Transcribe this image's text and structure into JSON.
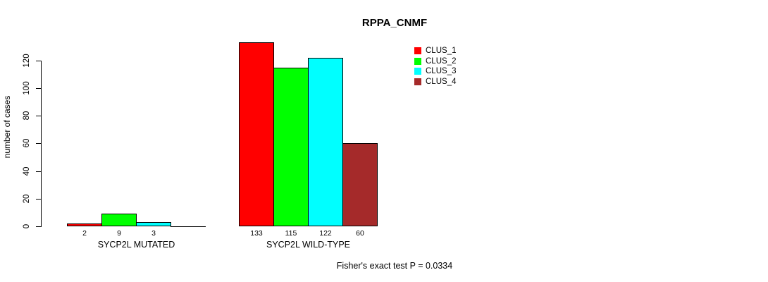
{
  "chart_data": {
    "type": "bar",
    "title": "RPPA_CNMF",
    "ylabel": "number of cases",
    "xlabel": "",
    "ylim": [
      0,
      135
    ],
    "yticks": [
      0,
      20,
      40,
      60,
      80,
      100,
      120
    ],
    "grid": false,
    "categories": [
      "SYCP2L MUTATED",
      "SYCP2L WILD-TYPE"
    ],
    "series": [
      {
        "name": "CLUS_1",
        "color": "#FF0000",
        "values": [
          2,
          133
        ]
      },
      {
        "name": "CLUS_2",
        "color": "#00FF00",
        "values": [
          9,
          115
        ]
      },
      {
        "name": "CLUS_3",
        "color": "#00FFFF",
        "values": [
          3,
          122
        ]
      },
      {
        "name": "CLUS_4",
        "color": "#A52A2A",
        "values": [
          0,
          60
        ]
      }
    ],
    "bar_value_labels": [
      [
        "2",
        "9",
        "3",
        ""
      ],
      [
        "133",
        "115",
        "122",
        "60"
      ]
    ],
    "legend_position": "top-right",
    "annotation": "Fisher's exact test P = 0.0334"
  }
}
